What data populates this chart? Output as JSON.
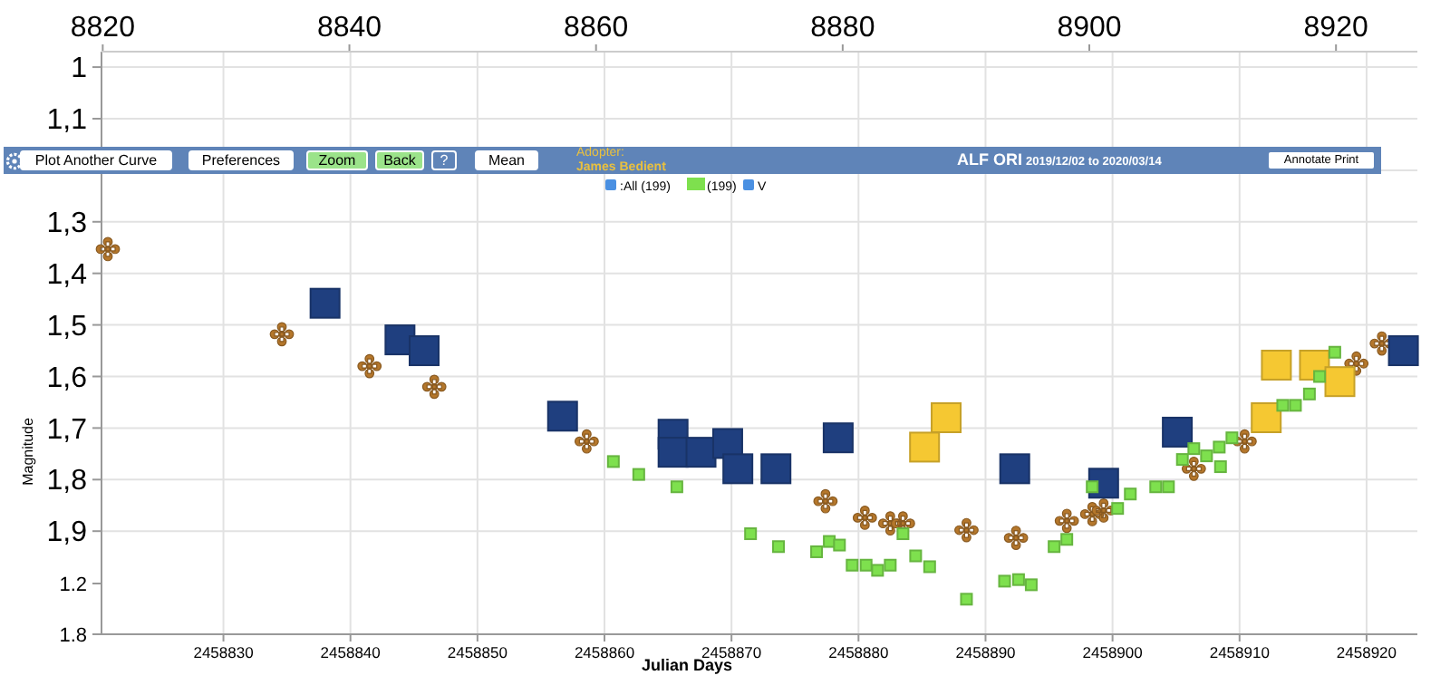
{
  "chart_data": {
    "type": "scatter",
    "xlabel": "Julian Days",
    "ylabel": "Magnitude",
    "xlim": [
      2458820.4,
      2458924
    ],
    "xticks": [
      2458830,
      2458840,
      2458850,
      2458860,
      2458870,
      2458880,
      2458890,
      2458900,
      2458910,
      2458920
    ],
    "x2lim": [
      8819.9,
      8926.6
    ],
    "x2ticks": [
      8820,
      8840,
      8860,
      8880,
      8900,
      8920
    ],
    "ylim": [
      2.1,
      0.97
    ],
    "yticks": [
      {
        "value": 1,
        "label": "1"
      },
      {
        "value": 1.1,
        "label": "1,1"
      },
      {
        "value": 1.2,
        "label": null
      },
      {
        "value": 1.3,
        "label": "1,3"
      },
      {
        "value": 1.4,
        "label": "1,4"
      },
      {
        "value": 1.5,
        "label": "1,5"
      },
      {
        "value": 1.6,
        "label": "1,6"
      },
      {
        "value": 1.7,
        "label": "1,7"
      },
      {
        "value": 1.8,
        "label": "1,8"
      },
      {
        "value": 1.9,
        "label": "1,9"
      }
    ],
    "y2lim": [
      1.8,
      -5.09
    ],
    "y2ticks": [
      1.2,
      1.8
    ],
    "grid": true,
    "legend": "top",
    "annotations": [
      "Plot Another Curve",
      "Preferences",
      "Zoom",
      "Back",
      "?",
      "Mean",
      "Adopter:",
      "James Bedient",
      "ALF ORI",
      "2019/12/02 to 2020/03/14",
      "Annotate Print",
      ":All (199)",
      "V"
    ],
    "series": [
      {
        "color": "#7ee04e",
        "name": "(199)",
        "marker": "square",
        "x": [
          2458860.7,
          2458862.7,
          2458865.7,
          2458871.5,
          2458873.7,
          2458876.7,
          2458877.7,
          2458878.5,
          2458879.5,
          2458880.6,
          2458881.5,
          2458882.5,
          2458883.5,
          2458884.5,
          2458885.6,
          2458888.5,
          2458891.5,
          2458892.6,
          2458893.6,
          2458895.4,
          2458896.4,
          2458898.4,
          2458900.4,
          2458901.4,
          2458903.4,
          2458904.4,
          2458905.5,
          2458906.4,
          2458907.4,
          2458908.4,
          2458908.5,
          2458909.4,
          2458913.4,
          2458914.4,
          2458915.5,
          2458916.3,
          2458917.5
        ],
        "values": [
          1.765,
          1.79,
          1.814,
          1.905,
          1.93,
          1.94,
          1.92,
          1.927,
          1.966,
          1.966,
          1.976,
          1.966,
          1.905,
          1.948,
          1.969,
          2.032,
          1.997,
          1.994,
          2.004,
          1.93,
          1.916,
          1.814,
          1.856,
          1.828,
          1.814,
          1.814,
          1.761,
          1.74,
          1.754,
          1.737,
          1.775,
          1.719,
          1.656,
          1.656,
          1.634,
          1.6,
          1.553
        ]
      },
      {
        "color": "#b5772b",
        "marker": "cross",
        "x": [
          2458820.9,
          2458834.6,
          2458841.5,
          2458846.6,
          2458858.6,
          2458877.4,
          2458880.5,
          2458882.5,
          2458883.5,
          2458888.5,
          2458892.4,
          2458896.4,
          2458898.4,
          2458899.3,
          2458906.4,
          2458910.4,
          2458919.2,
          2458921.2
        ],
        "values": [
          1.353,
          1.518,
          1.58,
          1.62,
          1.726,
          1.842,
          1.874,
          1.885,
          1.885,
          1.898,
          1.913,
          1.88,
          1.867,
          1.86,
          1.779,
          1.726,
          1.575,
          1.536
        ]
      },
      {
        "color": "#f5c832",
        "marker": "square",
        "x": [
          2458885.2,
          2458886.9,
          2458912.1,
          2458912.9,
          2458915.9,
          2458917.9
        ],
        "values": [
          1.737,
          1.68,
          1.68,
          1.578,
          1.578,
          1.61
        ]
      },
      {
        "color": "#1f3f7f",
        "marker": "square",
        "x": [
          2458838.0,
          2458843.9,
          2458845.8,
          2458856.7,
          2458865.4,
          2458865.4,
          2458867.6,
          2458869.7,
          2458870.5,
          2458873.5,
          2458878.4,
          2458892.3,
          2458899.3,
          2458905.1,
          2458922.9
        ],
        "values": [
          1.458,
          1.529,
          1.55,
          1.677,
          1.712,
          1.747,
          1.747,
          1.73,
          1.779,
          1.779,
          1.719,
          1.779,
          1.807,
          1.708,
          1.55
        ]
      }
    ]
  }
}
